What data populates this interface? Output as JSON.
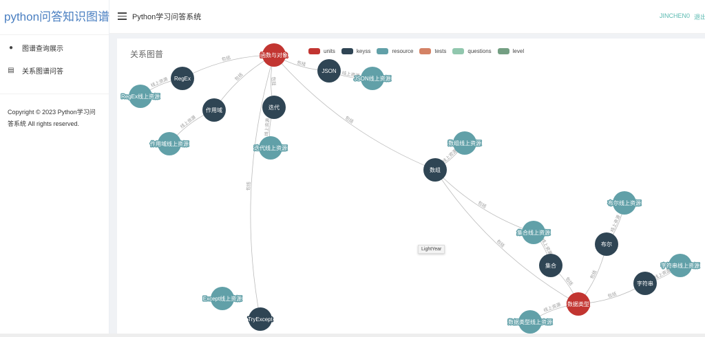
{
  "sidebar": {
    "logo": "python问答知识图谱",
    "items": [
      {
        "label": "图谱查询展示",
        "icon": "palette-icon"
      },
      {
        "label": "关系图谱问答",
        "icon": "list-icon"
      }
    ],
    "copyright": "Copyright © 2023 Python学习问答系统 All rights reserved."
  },
  "header": {
    "title": "Python学习问答系统",
    "user": "JINCHEN0",
    "logout": "退出"
  },
  "card": {
    "title": "关系图普"
  },
  "legend": [
    {
      "name": "units",
      "color": "#c23531"
    },
    {
      "name": "keyss",
      "color": "#2f4554"
    },
    {
      "name": "resource",
      "color": "#61a0a8"
    },
    {
      "name": "tests",
      "color": "#d48265"
    },
    {
      "name": "questions",
      "color": "#91c7ae"
    },
    {
      "name": "level",
      "color": "#749f83"
    }
  ],
  "graph": {
    "nodes": [
      {
        "name": "函数与对象",
        "category": "units"
      },
      {
        "name": "RegEx",
        "category": "keyss"
      },
      {
        "name": "RegEx线上资源",
        "category": "resource"
      },
      {
        "name": "作用域",
        "category": "keyss"
      },
      {
        "name": "作用域线上资源",
        "category": "resource"
      },
      {
        "name": "迭代",
        "category": "keyss"
      },
      {
        "name": "迭代线上资源",
        "category": "resource"
      },
      {
        "name": "JSON",
        "category": "keyss"
      },
      {
        "name": "JSON线上资源",
        "category": "resource"
      },
      {
        "name": "数组",
        "category": "keyss"
      },
      {
        "name": "数组线上资源",
        "category": "resource"
      },
      {
        "name": "集合线上资源",
        "category": "resource"
      },
      {
        "name": "集合",
        "category": "keyss"
      },
      {
        "name": "布尔",
        "category": "keyss"
      },
      {
        "name": "布尔线上资源",
        "category": "resource"
      },
      {
        "name": "字符串",
        "category": "keyss"
      },
      {
        "name": "字符串线上资源",
        "category": "resource"
      },
      {
        "name": "数据类型",
        "category": "units"
      },
      {
        "name": "数据类型线上资源",
        "category": "resource"
      },
      {
        "name": "Except线上资源",
        "category": "resource"
      },
      {
        "name": "TryExcept",
        "category": "keyss"
      }
    ],
    "links": [
      {
        "s": "函数与对象",
        "t": "RegEx",
        "label": "包括"
      },
      {
        "s": "函数与对象",
        "t": "作用域",
        "label": "包括"
      },
      {
        "s": "函数与对象",
        "t": "迭代",
        "label": "包括"
      },
      {
        "s": "函数与对象",
        "t": "JSON",
        "label": "包括"
      },
      {
        "s": "函数与对象",
        "t": "数组",
        "label": "包括"
      },
      {
        "s": "函数与对象",
        "t": "TryExcept",
        "label": "包括"
      },
      {
        "s": "RegEx",
        "t": "RegEx线上资源",
        "label": "线上资源"
      },
      {
        "s": "作用域",
        "t": "作用域线上资源",
        "label": "线上资源"
      },
      {
        "s": "迭代",
        "t": "迭代线上资源",
        "label": "线上资源"
      },
      {
        "s": "JSON",
        "t": "JSON线上资源",
        "label": "线上资源"
      },
      {
        "s": "数组",
        "t": "数组线上资源",
        "label": "线上资源"
      },
      {
        "s": "数组",
        "t": "集合线上资源",
        "label": "包括"
      },
      {
        "s": "数组",
        "t": "数据类型",
        "label": "包括"
      },
      {
        "s": "集合",
        "t": "集合线上资源",
        "label": "线上资源"
      },
      {
        "s": "布尔",
        "t": "布尔线上资源",
        "label": "线上资源"
      },
      {
        "s": "字符串",
        "t": "字符串线上资源",
        "label": "线上资源"
      },
      {
        "s": "数据类型",
        "t": "集合",
        "label": "包括"
      },
      {
        "s": "数据类型",
        "t": "布尔",
        "label": "包括"
      },
      {
        "s": "数据类型",
        "t": "字符串",
        "label": "包括"
      },
      {
        "s": "数据类型",
        "t": "数据类型线上资源",
        "label": "线上资源"
      }
    ],
    "tooltip": "LightYear"
  }
}
